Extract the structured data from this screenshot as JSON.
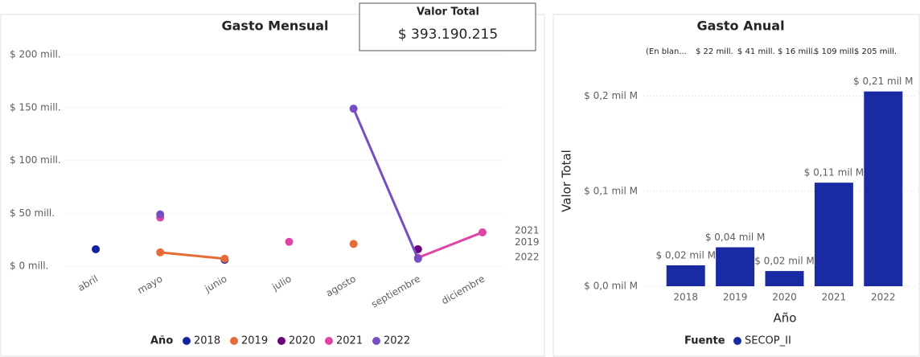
{
  "card": {
    "title": "Valor Total",
    "value": "$ 393.190.215"
  },
  "chart_data": [
    {
      "type": "line",
      "title": "Gasto Mensual",
      "categories": [
        "abril",
        "mayo",
        "junio",
        "julio",
        "agosto",
        "septiembre",
        "diciembre"
      ],
      "ylim": [
        0,
        210
      ],
      "yticks": [
        {
          "value": 0,
          "label": "$ 0 mill."
        },
        {
          "value": 50,
          "label": "$ 50 mill."
        },
        {
          "value": 100,
          "label": "$ 100 mill."
        },
        {
          "value": 150,
          "label": "$ 150 mill."
        },
        {
          "value": 200,
          "label": "$ 200 mill."
        }
      ],
      "grid": true,
      "legend": {
        "title": "Año",
        "position": "bottom"
      },
      "series": [
        {
          "name": "2018",
          "color": "#12239e",
          "values": [
            16,
            null,
            6,
            null,
            null,
            null,
            null
          ]
        },
        {
          "name": "2019",
          "color": "#e66c37",
          "values": [
            null,
            13,
            7,
            null,
            21,
            null,
            null
          ],
          "end_label": true
        },
        {
          "name": "2020",
          "color": "#6b007b",
          "values": [
            null,
            null,
            null,
            null,
            null,
            16,
            null
          ]
        },
        {
          "name": "2021",
          "color": "#e044a7",
          "values": [
            null,
            46,
            null,
            23,
            null,
            8,
            32
          ],
          "end_label": true
        },
        {
          "name": "2022",
          "color": "#744ec2",
          "values": [
            null,
            49,
            null,
            null,
            149,
            7,
            null
          ],
          "end_label": true
        }
      ]
    },
    {
      "type": "bar",
      "title": "Gasto Anual",
      "header_row": [
        "(En blan...",
        "$ 22 mill.",
        "$ 41 mill.",
        "$ 16 mill.",
        "$ 109 mill.",
        "$ 205 mill."
      ],
      "categories": [
        "2018",
        "2019",
        "2020",
        "2021",
        "2022"
      ],
      "x_label": "Año",
      "y_label": "Valor Total",
      "ylim": [
        0,
        0.22
      ],
      "yticks": [
        {
          "value": 0,
          "label": "$ 0,0 mil M"
        },
        {
          "value": 0.1,
          "label": "$ 0,1 mil M"
        },
        {
          "value": 0.2,
          "label": "$ 0,2 mil M"
        }
      ],
      "grid": true,
      "legend": {
        "title": "Fuente",
        "position": "bottom"
      },
      "series": [
        {
          "name": "SECOP_II",
          "color": "#1a2aa3",
          "values": [
            0.022,
            0.041,
            0.016,
            0.109,
            0.205
          ],
          "value_labels": [
            "$ 0,02 mil M",
            "$ 0,04 mil M",
            "$ 0,02 mil M",
            "$ 0,11 mil M",
            "$ 0,21 mil M"
          ]
        }
      ]
    }
  ]
}
